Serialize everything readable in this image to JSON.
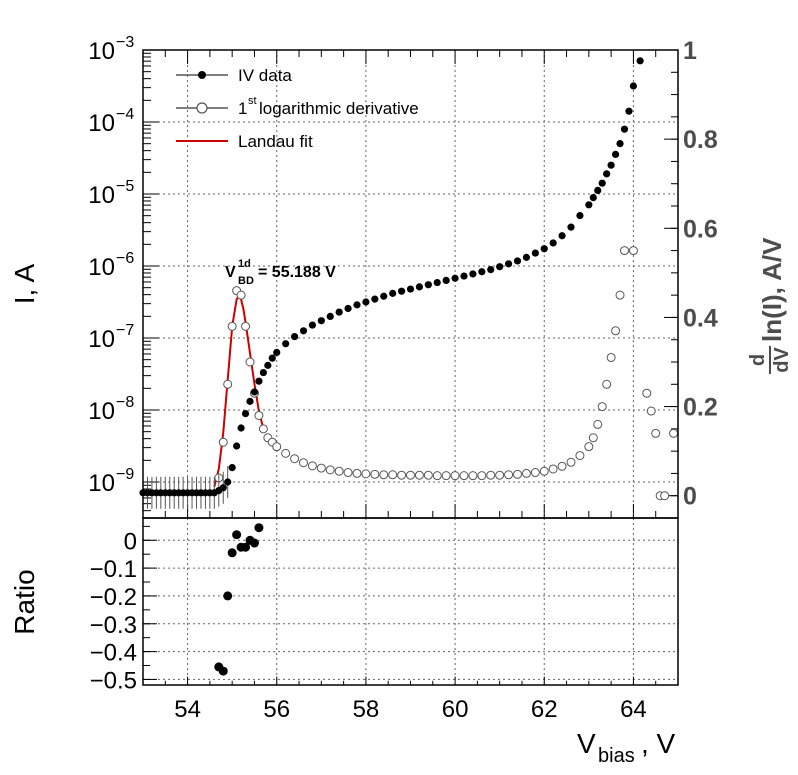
{
  "chart_data": [
    {
      "panel": "main",
      "type": "scatter",
      "xlabel_main": "V",
      "xlabel_sub": "bias",
      "xlabel_suffix": ", V",
      "xlim": [
        53,
        65
      ],
      "x_ticks": [
        54,
        56,
        58,
        60,
        62,
        64
      ],
      "ylabel_left": "I, A",
      "ylim_left_log10": [
        -9.5,
        -3
      ],
      "yticks_left": [
        {
          "base": "10",
          "exp": "−9",
          "value": -9
        },
        {
          "base": "10",
          "exp": "−8",
          "value": -8
        },
        {
          "base": "10",
          "exp": "−7",
          "value": -7
        },
        {
          "base": "10",
          "exp": "−6",
          "value": -6
        },
        {
          "base": "10",
          "exp": "−5",
          "value": -5
        },
        {
          "base": "10",
          "exp": "−4",
          "value": -4
        },
        {
          "base": "10",
          "exp": "−3",
          "value": -3
        }
      ],
      "ylabel_right": {
        "num": "d",
        "den": "dV",
        "rest": "ln(I), A/V"
      },
      "ylim_right": [
        -0.05,
        1.0
      ],
      "yticks_right": [
        "0",
        "0.2",
        "0.4",
        "0.6",
        "0.8",
        "1"
      ],
      "yticks_right_values": [
        0,
        0.2,
        0.4,
        0.6,
        0.8,
        1.0
      ],
      "grid": true,
      "legend_position": "top-left",
      "legend": [
        {
          "label": "IV data",
          "style": "filled"
        },
        {
          "label_pre": "1",
          "label_sup": "st",
          "label_post": " logarithmic derivative",
          "style": "open"
        },
        {
          "label": "Landau fit",
          "style": "line",
          "color": "#cc0000"
        }
      ],
      "annotation": {
        "sym": "V",
        "sup": "1d",
        "sub": "BD",
        "text": " = 55.188 V",
        "x": 54.9,
        "y_log10": -6.2
      },
      "series": [
        {
          "name": "IV data",
          "marker": "filled-circle",
          "color": "#000000",
          "x": [
            53,
            53.1,
            53.2,
            53.3,
            53.4,
            53.5,
            53.6,
            53.7,
            53.8,
            53.9,
            54.0,
            54.1,
            54.2,
            54.3,
            54.4,
            54.5,
            54.6,
            54.7,
            54.8,
            54.9,
            55.0,
            55.1,
            55.2,
            55.3,
            55.4,
            55.5,
            55.6,
            55.7,
            55.8,
            55.9,
            56.0,
            56.2,
            56.4,
            56.6,
            56.8,
            57.0,
            57.2,
            57.4,
            57.6,
            57.8,
            58.0,
            58.2,
            58.4,
            58.6,
            58.8,
            59.0,
            59.2,
            59.4,
            59.6,
            59.8,
            60.0,
            60.2,
            60.4,
            60.6,
            60.8,
            61.0,
            61.2,
            61.4,
            61.6,
            61.8,
            62.0,
            62.2,
            62.4,
            62.6,
            62.8,
            63.0,
            63.1,
            63.2,
            63.3,
            63.4,
            63.5,
            63.6,
            63.7,
            63.8,
            63.9,
            64.0,
            64.15
          ],
          "y_log10": [
            -9.15,
            -9.15,
            -9.15,
            -9.15,
            -9.15,
            -9.15,
            -9.15,
            -9.15,
            -9.15,
            -9.15,
            -9.15,
            -9.15,
            -9.15,
            -9.15,
            -9.15,
            -9.15,
            -9.15,
            -9.12,
            -9.08,
            -9.0,
            -8.8,
            -8.5,
            -8.25,
            -8.05,
            -7.88,
            -7.75,
            -7.6,
            -7.48,
            -7.38,
            -7.28,
            -7.2,
            -7.08,
            -6.98,
            -6.9,
            -6.82,
            -6.76,
            -6.7,
            -6.64,
            -6.59,
            -6.54,
            -6.5,
            -6.46,
            -6.42,
            -6.38,
            -6.35,
            -6.32,
            -6.29,
            -6.26,
            -6.23,
            -6.2,
            -6.17,
            -6.14,
            -6.11,
            -6.08,
            -6.05,
            -6.01,
            -5.97,
            -5.93,
            -5.88,
            -5.82,
            -5.76,
            -5.68,
            -5.58,
            -5.46,
            -5.3,
            -5.15,
            -5.05,
            -4.95,
            -4.85,
            -4.72,
            -4.6,
            -4.45,
            -4.3,
            -4.1,
            -3.85,
            -3.5,
            -3.15
          ]
        },
        {
          "name": "1st logarithmic derivative",
          "marker": "open-circle",
          "color": "#555555",
          "x": [
            54.7,
            54.8,
            54.9,
            55.0,
            55.1,
            55.2,
            55.3,
            55.4,
            55.5,
            55.6,
            55.7,
            55.8,
            55.9,
            56.0,
            56.2,
            56.4,
            56.6,
            56.8,
            57.0,
            57.2,
            57.4,
            57.6,
            57.8,
            58.0,
            58.2,
            58.4,
            58.6,
            58.8,
            59.0,
            59.2,
            59.4,
            59.6,
            59.8,
            60.0,
            60.2,
            60.4,
            60.6,
            60.8,
            61.0,
            61.2,
            61.4,
            61.6,
            61.8,
            62.0,
            62.2,
            62.4,
            62.6,
            62.8,
            63.0,
            63.1,
            63.2,
            63.3,
            63.4,
            63.5,
            63.6,
            63.7,
            63.8,
            64.0,
            64.3,
            64.4,
            64.5,
            64.6,
            64.7,
            64.9
          ],
          "y": [
            0.04,
            0.12,
            0.25,
            0.38,
            0.46,
            0.45,
            0.38,
            0.3,
            0.23,
            0.18,
            0.15,
            0.13,
            0.12,
            0.11,
            0.095,
            0.083,
            0.074,
            0.067,
            0.062,
            0.058,
            0.055,
            0.052,
            0.05,
            0.049,
            0.048,
            0.047,
            0.047,
            0.046,
            0.046,
            0.046,
            0.046,
            0.045,
            0.045,
            0.045,
            0.045,
            0.045,
            0.045,
            0.046,
            0.046,
            0.047,
            0.048,
            0.05,
            0.052,
            0.055,
            0.06,
            0.066,
            0.075,
            0.09,
            0.11,
            0.13,
            0.16,
            0.2,
            0.25,
            0.31,
            0.37,
            0.45,
            0.55,
            0.55,
            0.23,
            0.19,
            0.14,
            0.0,
            0.0,
            0.14
          ]
        },
        {
          "name": "Landau fit",
          "marker": "line",
          "color": "#cc0000",
          "x": [
            54.6,
            54.7,
            54.8,
            54.9,
            55.0,
            55.1,
            55.15,
            55.2,
            55.25,
            55.3,
            55.4,
            55.5,
            55.6,
            55.7
          ],
          "y": [
            0.02,
            0.06,
            0.14,
            0.26,
            0.38,
            0.44,
            0.45,
            0.44,
            0.42,
            0.39,
            0.32,
            0.25,
            0.19,
            0.15
          ]
        }
      ]
    },
    {
      "panel": "ratio",
      "type": "scatter",
      "ylabel": "Ratio",
      "ylim": [
        -0.52,
        0.08
      ],
      "yticks": [
        "0",
        "−0.1",
        "−0.2",
        "−0.3",
        "−0.4",
        "−0.5"
      ],
      "yticks_values": [
        0,
        -0.1,
        -0.2,
        -0.3,
        -0.4,
        -0.5
      ],
      "series": [
        {
          "name": "Ratio",
          "x": [
            54.7,
            54.8,
            54.9,
            55.0,
            55.1,
            55.2,
            55.3,
            55.4,
            55.5,
            55.6
          ],
          "y": [
            -0.455,
            -0.47,
            -0.2,
            -0.045,
            0.02,
            -0.025,
            -0.025,
            0.0,
            -0.01,
            0.045
          ]
        }
      ]
    }
  ]
}
